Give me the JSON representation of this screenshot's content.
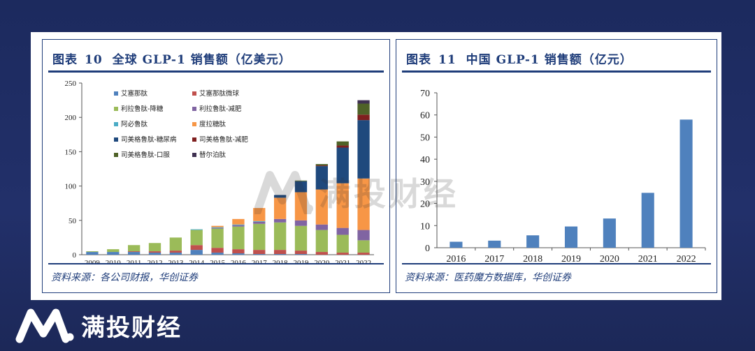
{
  "brand": {
    "name": "满投财经",
    "watermark": "满投财经"
  },
  "figures": [
    {
      "label": "图表",
      "number": "10",
      "title": "全球 GLP-1 销售额（亿美元）",
      "source": "资料来源：各公司财报，华创证券"
    },
    {
      "label": "图表",
      "number": "11",
      "title": "中国 GLP-1 销售额（亿元）",
      "source": "资料来源：医药魔方数据库，华创证券"
    }
  ],
  "chart_data": [
    {
      "type": "bar",
      "stacked": true,
      "categories": [
        "2009",
        "2010",
        "2011",
        "2012",
        "2013",
        "2014",
        "2015",
        "2016",
        "2017",
        "2018",
        "2019",
        "2020",
        "2021",
        "2022"
      ],
      "ylim": [
        0,
        250
      ],
      "yticks": [
        0,
        50,
        100,
        150,
        200,
        250
      ],
      "legend_position": "top-left",
      "series": [
        {
          "name": "艾塞那肽",
          "color": "#4f81bd",
          "values": [
            4,
            4,
            4,
            3,
            3,
            7,
            3,
            2,
            1,
            1,
            1,
            0,
            0,
            0
          ]
        },
        {
          "name": "艾塞那肽微球",
          "color": "#c0504d",
          "values": [
            0,
            0,
            1,
            2,
            3,
            7,
            7,
            6,
            6,
            6,
            5,
            4,
            3,
            3
          ]
        },
        {
          "name": "利拉鲁肽-降糖",
          "color": "#9bbb59",
          "values": [
            1,
            4,
            9,
            12,
            19,
            22,
            28,
            33,
            38,
            40,
            36,
            32,
            26,
            18
          ]
        },
        {
          "name": "利拉鲁肽-减肥",
          "color": "#8064a2",
          "values": [
            0,
            0,
            0,
            0,
            0,
            0,
            1,
            2,
            3,
            5,
            8,
            8,
            10,
            15
          ]
        },
        {
          "name": "阿必鲁肽",
          "color": "#4bacc6",
          "values": [
            0,
            0,
            0,
            0,
            0,
            1,
            1,
            1,
            1,
            0,
            0,
            0,
            0,
            0
          ]
        },
        {
          "name": "度拉糖肽",
          "color": "#f79646",
          "values": [
            0,
            0,
            0,
            0,
            0,
            0,
            2,
            8,
            19,
            31,
            41,
            51,
            65,
            75
          ]
        },
        {
          "name": "司美格鲁肽-糖尿病",
          "color": "#1f497d",
          "values": [
            0,
            0,
            0,
            0,
            0,
            0,
            0,
            0,
            0,
            4,
            16,
            34,
            52,
            85
          ]
        },
        {
          "name": "司美格鲁肽-减肥",
          "color": "#7f1f1f",
          "values": [
            0,
            0,
            0,
            0,
            0,
            0,
            0,
            0,
            0,
            0,
            0,
            1,
            3,
            8
          ]
        },
        {
          "name": "司美格鲁肽-口服",
          "color": "#4f6228",
          "values": [
            0,
            0,
            0,
            0,
            0,
            0,
            0,
            0,
            0,
            0,
            1,
            2,
            6,
            16
          ]
        },
        {
          "name": "替尔泊肽",
          "color": "#3f3151",
          "values": [
            0,
            0,
            0,
            0,
            0,
            0,
            0,
            0,
            0,
            0,
            0,
            0,
            0,
            5
          ]
        }
      ]
    },
    {
      "type": "bar",
      "categories": [
        "2016",
        "2017",
        "2018",
        "2019",
        "2020",
        "2021",
        "2022"
      ],
      "ylim": [
        0,
        70
      ],
      "yticks": [
        0,
        10,
        20,
        30,
        40,
        50,
        60,
        70
      ],
      "color": "#4f81bd",
      "values": [
        2.7,
        3.2,
        5.6,
        9.6,
        13.2,
        24.8,
        57.9
      ]
    }
  ]
}
